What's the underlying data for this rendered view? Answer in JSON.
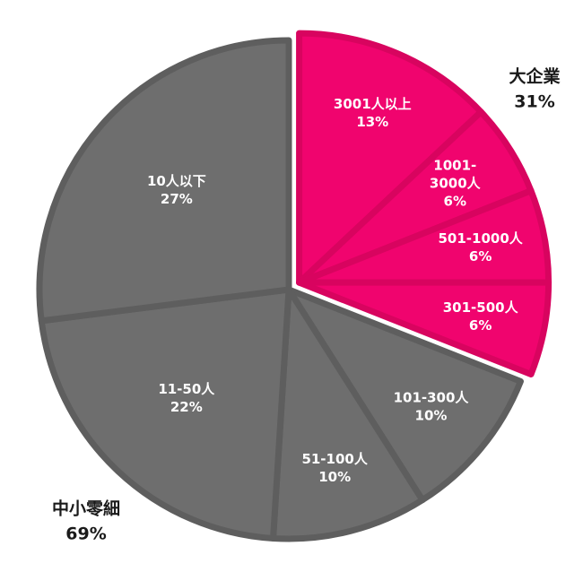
{
  "chart_data": {
    "type": "pie",
    "title": "",
    "slices": [
      {
        "label": "3001人以上",
        "value": 13,
        "display": "13%",
        "group": "large"
      },
      {
        "label": "1001-3000人",
        "value": 6,
        "display": "6%",
        "group": "large"
      },
      {
        "label": "501-1000人",
        "value": 6,
        "display": "6%",
        "group": "large"
      },
      {
        "label": "301-500人",
        "value": 6,
        "display": "6%",
        "group": "large"
      },
      {
        "label": "101-300人",
        "value": 10,
        "display": "10%",
        "group": "small"
      },
      {
        "label": "51-100人",
        "value": 10,
        "display": "10%",
        "group": "small"
      },
      {
        "label": "11-50人",
        "value": 22,
        "display": "22%",
        "group": "small"
      },
      {
        "label": "10人以下",
        "value": 27,
        "display": "27%",
        "group": "small"
      }
    ],
    "groups": [
      {
        "key": "large",
        "name": "大企業",
        "percent": "31%",
        "color": "#f0046e"
      },
      {
        "key": "small",
        "name": "中小零細",
        "percent": "69%",
        "color": "#6e6e6e"
      }
    ],
    "exploded_group": "large",
    "start_angle_deg": 0,
    "direction": "clockwise"
  }
}
